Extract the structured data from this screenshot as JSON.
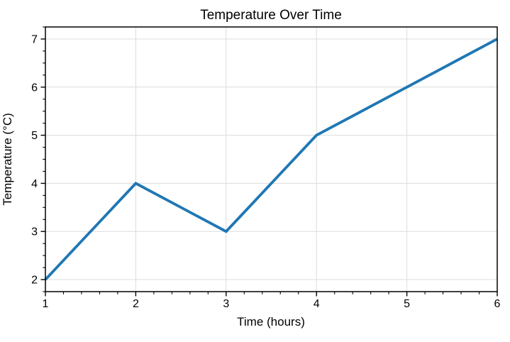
{
  "chart_data": {
    "type": "line",
    "title": "Temperature Over Time",
    "xlabel": "Time (hours)",
    "ylabel": "Temperature (°C)",
    "x": [
      1,
      2,
      3,
      4,
      5,
      6
    ],
    "y": [
      2,
      4,
      3,
      5,
      6,
      7
    ],
    "series": [
      {
        "name": "Temperature",
        "x": [
          1,
          2,
          3,
          4,
          5,
          6
        ],
        "values": [
          2,
          4,
          3,
          5,
          6,
          7
        ]
      }
    ],
    "xlim": [
      1,
      6
    ],
    "ylim": [
      1.75,
      7.25
    ],
    "x_major_ticks": [
      1,
      2,
      3,
      4,
      5,
      6
    ],
    "y_major_ticks": [
      2,
      3,
      4,
      5,
      6,
      7
    ],
    "x_minor_step": 0.2,
    "y_minor_step": 0.25,
    "grid": true,
    "legend": false,
    "colors": {
      "line": "#1f77b4",
      "grid": "#dcdcdc",
      "axis": "#000000",
      "background": "#ffffff",
      "text": "#000000"
    }
  }
}
